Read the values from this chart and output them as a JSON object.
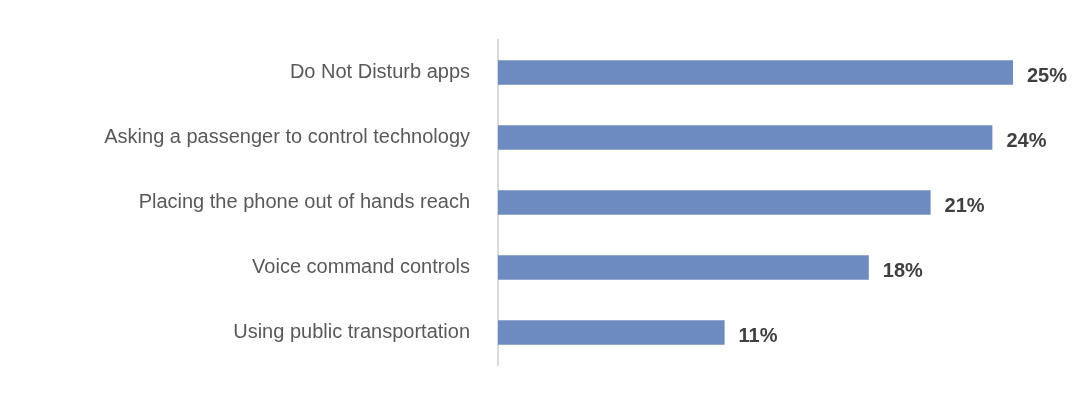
{
  "chart_data": {
    "type": "bar",
    "orientation": "horizontal",
    "categories": [
      "Do Not Disturb apps",
      "Asking a passenger to control technology",
      "Placing the phone out of hands reach",
      "Voice command controls",
      "Using public transportation"
    ],
    "values": [
      25,
      24,
      21,
      18,
      11
    ],
    "color": "#6e8bbf",
    "value_labels": [
      "25%",
      "24%",
      "21%",
      "18%",
      "11%"
    ]
  }
}
